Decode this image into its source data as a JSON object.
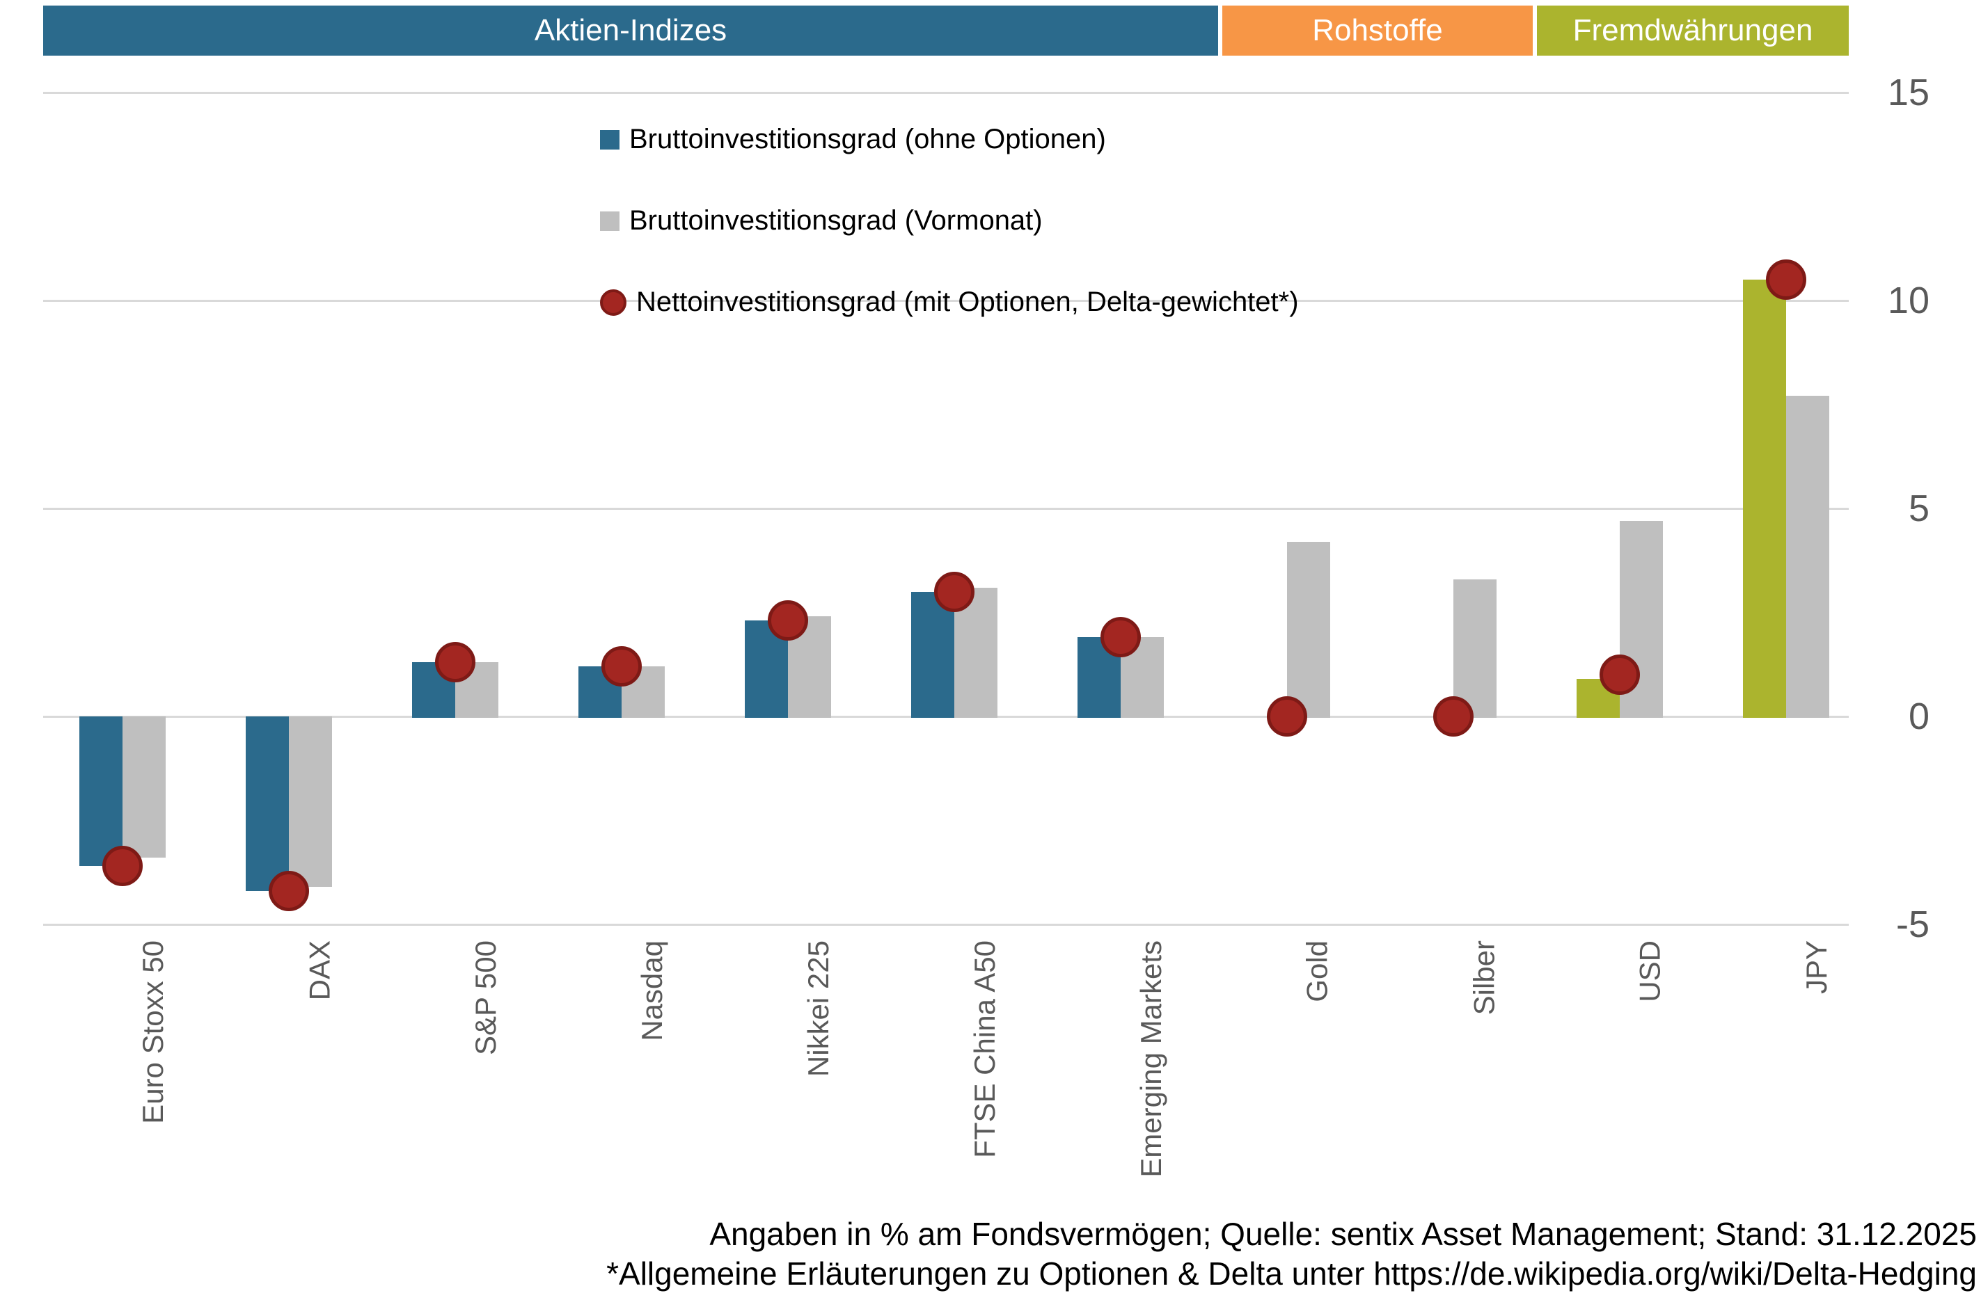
{
  "sections": [
    {
      "id": "aktien",
      "label": "Aktien-Indizes",
      "color": "#2B6A8C"
    },
    {
      "id": "rohstoffe",
      "label": "Rohstoffe",
      "color": "#F79646"
    },
    {
      "id": "fremd",
      "label": "Fremdwährungen",
      "color": "#ABB42E"
    }
  ],
  "legend": [
    {
      "label": "Bruttoinvestitionsgrad (ohne Optionen)",
      "marker": "square",
      "color": "#2B6A8C"
    },
    {
      "label": "Bruttoinvestitionsgrad (Vormonat)",
      "marker": "square",
      "color": "#BFBFBF"
    },
    {
      "label": "Nettoinvestitionsgrad (mit Optionen, Delta-gewichtet*)",
      "marker": "circle",
      "color": "#A32621",
      "edge_color": "#7E1A16"
    }
  ],
  "footer": {
    "line1": "Angaben in % am Fondsvermögen; Quelle: sentix Asset Management; Stand: 31.12.2025",
    "line2": "*Allgemeine Erläuterungen zu Optionen & Delta unter https://de.wikipedia.org/wiki/Delta-Hedging"
  },
  "chart_data": {
    "type": "bar",
    "title": "",
    "xlabel": "",
    "ylabel": "",
    "unit": "% am Fondsvermögen",
    "ylim": [
      -5,
      15
    ],
    "grid": true,
    "legend_position": "top-left-inside",
    "yticks": [
      {
        "value": 15,
        "label": "15"
      },
      {
        "value": 10,
        "label": "10"
      },
      {
        "value": 5,
        "label": "5"
      },
      {
        "value": 0,
        "label": "0"
      },
      {
        "value": -5,
        "label": "-5"
      }
    ],
    "categories": [
      "Euro Stoxx 50",
      "DAX",
      "S&P 500",
      "Nasdaq",
      "Nikkei 225",
      "FTSE China A50",
      "Emerging Markets",
      "Gold",
      "Silber",
      "USD",
      "JPY"
    ],
    "category_sections": [
      "aktien",
      "aktien",
      "aktien",
      "aktien",
      "aktien",
      "aktien",
      "aktien",
      "rohstoffe",
      "rohstoffe",
      "fremd",
      "fremd"
    ],
    "series": [
      {
        "name": "Bruttoinvestitionsgrad (ohne Optionen)",
        "type": "bar",
        "color_by_section": true,
        "values": [
          -3.6,
          -4.2,
          1.3,
          1.2,
          2.3,
          3.0,
          1.9,
          0,
          0,
          0.9,
          10.5
        ]
      },
      {
        "name": "Bruttoinvestitionsgrad (Vormonat)",
        "type": "bar",
        "color": "#BFBFBF",
        "values": [
          -3.4,
          -4.1,
          1.3,
          1.2,
          2.4,
          3.1,
          1.9,
          4.2,
          3.3,
          4.7,
          7.7
        ]
      },
      {
        "name": "Nettoinvestitionsgrad (mit Optionen, Delta-gewichtet*)",
        "type": "point",
        "color": "#A32621",
        "edge_color": "#7E1A16",
        "values": [
          -3.6,
          -4.2,
          1.3,
          1.2,
          2.3,
          3.0,
          1.9,
          0,
          0,
          1.0,
          10.5
        ]
      }
    ]
  }
}
